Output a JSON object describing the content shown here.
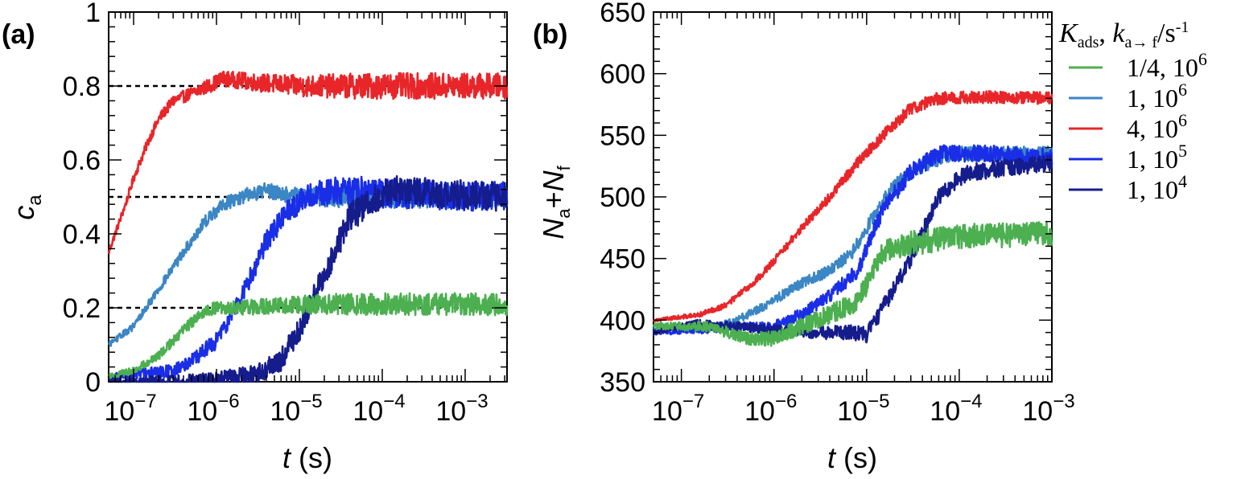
{
  "chart_data": [
    {
      "panel_label": "(a)",
      "type": "line",
      "xscale": "log",
      "xlim": [
        5e-08,
        0.0032
      ],
      "ylim": [
        0,
        1
      ],
      "ylabel": {
        "main": "c",
        "sub": "a"
      },
      "xlabel": {
        "var": "t",
        "unit": " (s)"
      },
      "x_ticks": [
        {
          "base": "10",
          "exp": "−7",
          "value": 1e-07
        },
        {
          "base": "10",
          "exp": "−6",
          "value": 1e-06
        },
        {
          "base": "10",
          "exp": "−5",
          "value": 1e-05
        },
        {
          "base": "10",
          "exp": "−4",
          "value": 0.0001
        },
        {
          "base": "10",
          "exp": "−3",
          "value": 0.001
        }
      ],
      "y_ticks": [
        {
          "label": "0",
          "value": 0
        },
        {
          "label": "0.2",
          "value": 0.2
        },
        {
          "label": "0.4",
          "value": 0.4
        },
        {
          "label": "0.6",
          "value": 0.6
        },
        {
          "label": "0.8",
          "value": 0.8
        },
        {
          "label": "1",
          "value": 1
        }
      ],
      "reference_lines": [
        0.2,
        0.5,
        0.8
      ],
      "series": [
        {
          "color": "#e8262a",
          "noise": 0.035,
          "points": [
            [
              5e-08,
              0.35
            ],
            [
              8e-08,
              0.48
            ],
            [
              1e-07,
              0.55
            ],
            [
              1.5e-07,
              0.65
            ],
            [
              2e-07,
              0.71
            ],
            [
              3e-07,
              0.76
            ],
            [
              5e-07,
              0.78
            ],
            [
              8e-07,
              0.8
            ],
            [
              1.2e-06,
              0.82
            ],
            [
              3e-06,
              0.81
            ],
            [
              1e-05,
              0.8
            ],
            [
              0.0001,
              0.8
            ],
            [
              0.0032,
              0.8
            ]
          ]
        },
        {
          "color": "#3b86c4",
          "noise": 0.03,
          "points": [
            [
              5e-08,
              0.1
            ],
            [
              1e-07,
              0.15
            ],
            [
              2e-07,
              0.25
            ],
            [
              4e-07,
              0.35
            ],
            [
              7e-07,
              0.43
            ],
            [
              1.2e-06,
              0.48
            ],
            [
              2e-06,
              0.5
            ],
            [
              4e-06,
              0.52
            ],
            [
              1e-05,
              0.5
            ],
            [
              0.0001,
              0.5
            ],
            [
              0.0032,
              0.5
            ]
          ]
        },
        {
          "color": "#1a2ee8",
          "noise": 0.04,
          "points": [
            [
              5e-08,
              0.01
            ],
            [
              1e-07,
              0.02
            ],
            [
              3e-07,
              0.03
            ],
            [
              6e-07,
              0.07
            ],
            [
              1e-06,
              0.11
            ],
            [
              2e-06,
              0.23
            ],
            [
              4e-06,
              0.38
            ],
            [
              7e-06,
              0.46
            ],
            [
              1.2e-05,
              0.5
            ],
            [
              3e-05,
              0.52
            ],
            [
              0.0001,
              0.51
            ],
            [
              0.0032,
              0.5
            ]
          ]
        },
        {
          "color": "#151c8c",
          "noise": 0.04,
          "points": [
            [
              5e-08,
              0.0
            ],
            [
              5e-07,
              0.0
            ],
            [
              1e-06,
              0.005
            ],
            [
              3e-06,
              0.02
            ],
            [
              6e-06,
              0.06
            ],
            [
              1e-05,
              0.14
            ],
            [
              2e-05,
              0.29
            ],
            [
              4e-05,
              0.44
            ],
            [
              7e-05,
              0.49
            ],
            [
              0.00015,
              0.52
            ],
            [
              0.0004,
              0.51
            ],
            [
              0.0032,
              0.5
            ]
          ]
        },
        {
          "color": "#4caf50",
          "noise": 0.03,
          "points": [
            [
              5e-08,
              0.015
            ],
            [
              1e-07,
              0.03
            ],
            [
              2e-07,
              0.07
            ],
            [
              4e-07,
              0.14
            ],
            [
              7e-07,
              0.19
            ],
            [
              1e-06,
              0.2
            ],
            [
              2e-06,
              0.2
            ],
            [
              1e-05,
              0.21
            ],
            [
              0.0001,
              0.21
            ],
            [
              0.0032,
              0.21
            ]
          ]
        }
      ]
    },
    {
      "panel_label": "(b)",
      "type": "line",
      "xscale": "log",
      "xlim": [
        5e-08,
        0.001
      ],
      "ylim": [
        350,
        650
      ],
      "ylabel": {
        "a": "N",
        "asub": "a",
        "plus": "+",
        "b": "N",
        "bsub": "f"
      },
      "xlabel": {
        "var": "t",
        "unit": " (s)"
      },
      "x_ticks": [
        {
          "base": "10",
          "exp": "−7",
          "value": 1e-07
        },
        {
          "base": "10",
          "exp": "−6",
          "value": 1e-06
        },
        {
          "base": "10",
          "exp": "−5",
          "value": 1e-05
        },
        {
          "base": "10",
          "exp": "−4",
          "value": 0.0001
        },
        {
          "base": "10",
          "exp": "−3",
          "value": 0.001
        }
      ],
      "y_ticks": [
        {
          "label": "350",
          "value": 350
        },
        {
          "label": "400",
          "value": 400
        },
        {
          "label": "450",
          "value": 450
        },
        {
          "label": "500",
          "value": 500
        },
        {
          "label": "550",
          "value": 550
        },
        {
          "label": "600",
          "value": 600
        },
        {
          "label": "650",
          "value": 650
        }
      ],
      "legend": {
        "placement": "top-right, outside",
        "title": {
          "K": "K",
          "Ksub": "ads",
          "sep": ", ",
          "k": "k",
          "ksub": "a→ f",
          "unit": "/s",
          "unitexp": "-1"
        },
        "entries": [
          {
            "color": "#4caf50",
            "label": "1/4, 10",
            "exp": "6"
          },
          {
            "color": "#3b86c4",
            "label": "1, 10",
            "exp": "6"
          },
          {
            "color": "#e8262a",
            "label": "4, 10",
            "exp": "6"
          },
          {
            "color": "#1a2ee8",
            "label": "1, 10",
            "exp": "5"
          },
          {
            "color": "#151c8c",
            "label": "1, 10",
            "exp": "4"
          }
        ]
      },
      "series": [
        {
          "color": "#e8262a",
          "noise": 5,
          "points": [
            [
              5e-08,
              400
            ],
            [
              1.5e-07,
              404
            ],
            [
              3e-07,
              412
            ],
            [
              6e-07,
              430
            ],
            [
              1e-06,
              448
            ],
            [
              2e-06,
              475
            ],
            [
              4e-06,
              500
            ],
            [
              8e-06,
              528
            ],
            [
              1.5e-05,
              550
            ],
            [
              3e-05,
              572
            ],
            [
              6e-05,
              580
            ],
            [
              0.0002,
              581
            ],
            [
              0.001,
              580
            ]
          ]
        },
        {
          "color": "#3b86c4",
          "noise": 6,
          "points": [
            [
              5e-08,
              392
            ],
            [
              2e-07,
              394
            ],
            [
              4e-07,
              400
            ],
            [
              8e-07,
              412
            ],
            [
              2e-06,
              430
            ],
            [
              4e-06,
              440
            ],
            [
              7e-06,
              455
            ],
            [
              1.2e-05,
              485
            ],
            [
              2e-05,
              510
            ],
            [
              4e-05,
              525
            ],
            [
              8e-05,
              535
            ],
            [
              0.001,
              535
            ]
          ]
        },
        {
          "color": "#1a2ee8",
          "noise": 7,
          "points": [
            [
              5e-08,
              390
            ],
            [
              2e-07,
              392
            ],
            [
              5e-07,
              395
            ],
            [
              1e-06,
              395
            ],
            [
              2e-06,
              405
            ],
            [
              4e-06,
              420
            ],
            [
              8e-06,
              440
            ],
            [
              1.5e-05,
              490
            ],
            [
              3e-05,
              520
            ],
            [
              6e-05,
              535
            ],
            [
              0.0002,
              535
            ],
            [
              0.001,
              532
            ]
          ]
        },
        {
          "color": "#151c8c",
          "noise": 7,
          "points": [
            [
              5e-08,
              390
            ],
            [
              1.5e-07,
              398
            ],
            [
              4e-07,
              395
            ],
            [
              1e-06,
              392
            ],
            [
              3e-06,
              390
            ],
            [
              7e-06,
              390
            ],
            [
              1e-05,
              388
            ],
            [
              1.5e-05,
              410
            ],
            [
              3e-05,
              450
            ],
            [
              6e-05,
              500
            ],
            [
              0.00012,
              520
            ],
            [
              0.001,
              528
            ]
          ]
        },
        {
          "color": "#4caf50",
          "noise": 10,
          "points": [
            [
              5e-08,
              395
            ],
            [
              2e-07,
              395
            ],
            [
              5e-07,
              385
            ],
            [
              1e-06,
              385
            ],
            [
              2e-06,
              395
            ],
            [
              4e-06,
              405
            ],
            [
              8e-06,
              415
            ],
            [
              1.5e-05,
              455
            ],
            [
              3e-05,
              462
            ],
            [
              0.0001,
              468
            ],
            [
              0.001,
              470
            ]
          ]
        }
      ]
    }
  ]
}
